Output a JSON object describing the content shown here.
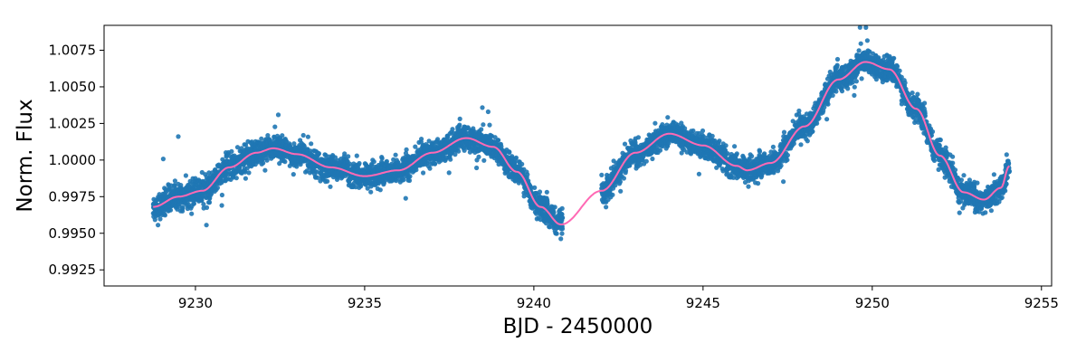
{
  "chart_data": {
    "type": "scatter",
    "xlabel": "BJD - 2450000",
    "ylabel": "Norm. Flux",
    "xlim": [
      9227.3,
      9255.3
    ],
    "ylim": [
      0.9914,
      1.0092
    ],
    "xticks": [
      9230,
      9235,
      9240,
      9245,
      9250,
      9255
    ],
    "xtick_labels": [
      "9230",
      "9235",
      "9240",
      "9245",
      "9250",
      "9255"
    ],
    "yticks": [
      0.9925,
      0.995,
      0.9975,
      1.0,
      1.0025,
      1.005,
      1.0075
    ],
    "ytick_labels": [
      "0.9925",
      "0.9950",
      "0.9975",
      "1.0000",
      "1.0025",
      "1.0050",
      "1.0075"
    ],
    "grid": false,
    "series": [
      {
        "kind": "scatter",
        "color": "#1f77b4",
        "segments": [
          [
            9228.75,
            9240.85
          ],
          [
            9242.0,
            9254.05
          ]
        ],
        "typical_scatter": 0.0007,
        "note_points": "dense photometric points scattered around the model curve"
      },
      {
        "kind": "line",
        "color": "#ff69b4",
        "x": [
          9228.75,
          9229.5,
          9230.2,
          9231.0,
          9231.8,
          9232.3,
          9233.0,
          9234.0,
          9235.0,
          9236.0,
          9237.0,
          9238.0,
          9238.8,
          9239.5,
          9240.2,
          9240.8,
          9242.0,
          9243.0,
          9244.0,
          9245.0,
          9246.0,
          9246.3,
          9247.0,
          9248.0,
          9249.0,
          9249.8,
          9250.5,
          9251.3,
          9252.0,
          9252.7,
          9253.3,
          9253.8,
          9254.05
        ],
        "y": [
          0.9968,
          0.9975,
          0.9979,
          0.9995,
          1.0005,
          1.0008,
          1.0004,
          0.9995,
          0.9989,
          0.9993,
          1.0005,
          1.0015,
          1.0009,
          0.9992,
          0.9968,
          0.9956,
          0.9979,
          1.0005,
          1.0018,
          1.001,
          0.9996,
          0.9993,
          0.9998,
          1.0023,
          1.0055,
          1.0067,
          1.0062,
          1.0035,
          1.0003,
          0.9978,
          0.9973,
          0.9981,
          0.9996
        ]
      }
    ]
  }
}
